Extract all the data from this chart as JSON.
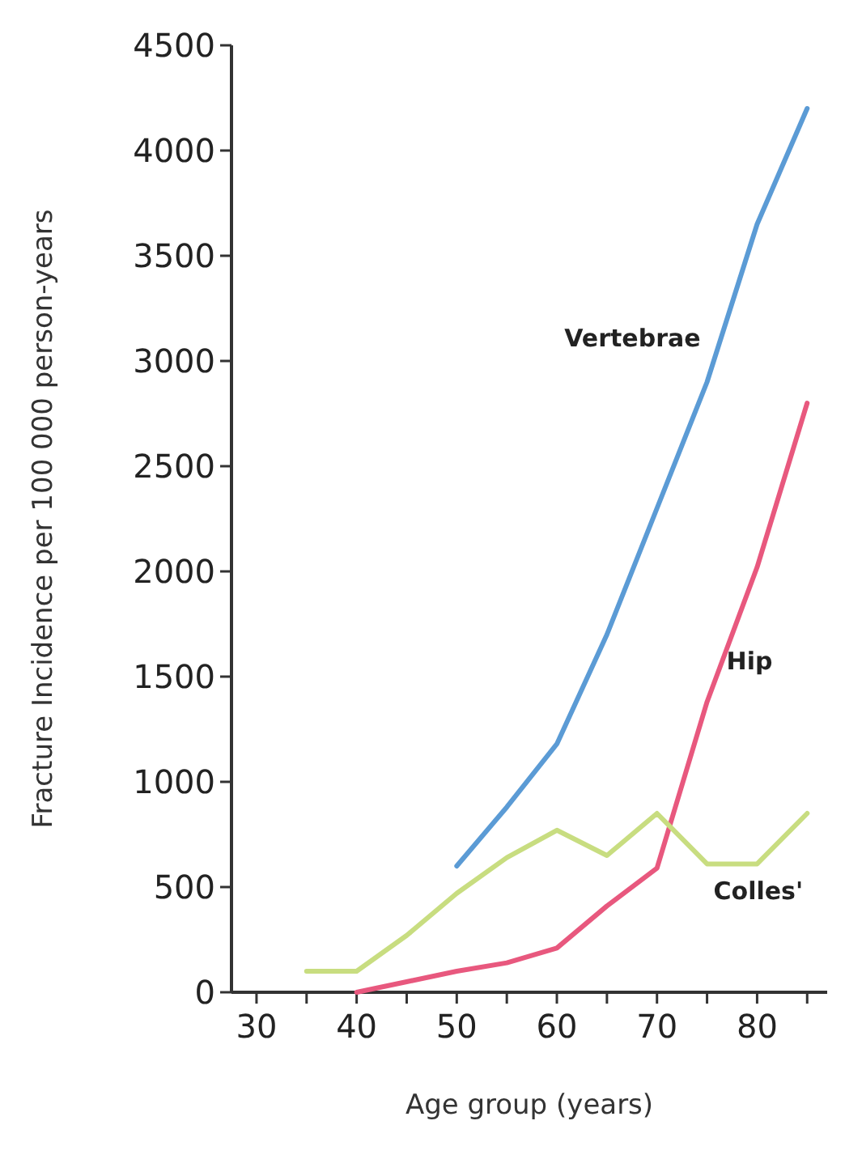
{
  "chart_data": {
    "type": "line",
    "xlabel": "Age group (years)",
    "ylabel": "Fracture Incidence per 100 000 person-years",
    "xlim": [
      27.5,
      87
    ],
    "ylim": [
      0,
      4500
    ],
    "xticks": [
      30,
      {
        "value": 35,
        "label": null
      },
      40,
      {
        "value": 45,
        "label": null
      },
      50,
      {
        "value": 55,
        "label": null
      },
      60,
      {
        "value": 65,
        "label": null
      },
      70,
      {
        "value": 75,
        "label": null
      },
      80,
      {
        "value": 85,
        "label": null
      }
    ],
    "yticks": [
      0,
      500,
      1000,
      1500,
      2000,
      2500,
      3000,
      3500,
      4000,
      4500
    ],
    "grid": false,
    "legend": false,
    "marker": "none",
    "line_style": "solid",
    "series": [
      {
        "name": "Vertebrae",
        "color": "#5b9bd5",
        "x": [
          50,
          55,
          60,
          65,
          70,
          75,
          80,
          85
        ],
        "values": [
          600,
          880,
          1180,
          1700,
          2300,
          2900,
          3650,
          4200
        ]
      },
      {
        "name": "Hip",
        "color": "#e8587e",
        "x": [
          40,
          45,
          50,
          55,
          60,
          65,
          70,
          75,
          80,
          85
        ],
        "values": [
          0,
          50,
          100,
          140,
          210,
          410,
          590,
          1380,
          2020,
          2800
        ]
      },
      {
        "name": "Colles'",
        "color": "#c8dd80",
        "x": [
          35,
          40,
          45,
          50,
          55,
          60,
          65,
          70,
          75,
          80,
          85
        ],
        "values": [
          100,
          100,
          270,
          470,
          640,
          770,
          650,
          850,
          610,
          610,
          850
        ]
      }
    ]
  }
}
